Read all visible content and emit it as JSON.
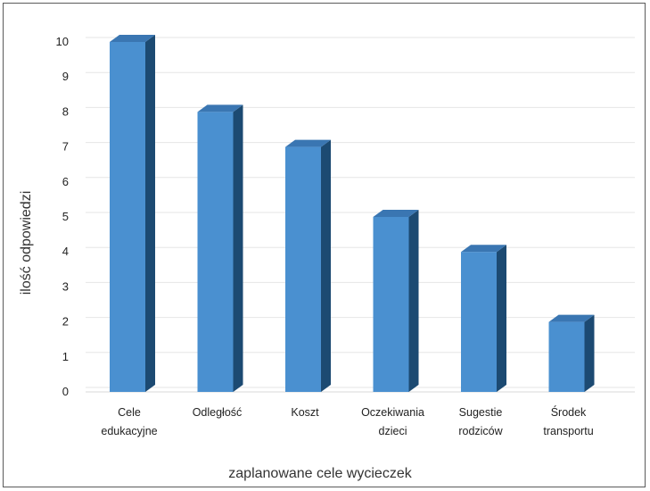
{
  "chart_data": {
    "type": "bar",
    "title": "",
    "categories": [
      [
        "Cele",
        "edukacyjne"
      ],
      [
        "Odległość"
      ],
      [
        "Koszt"
      ],
      [
        "Oczekiwania",
        "dzieci"
      ],
      [
        "Sugestie",
        "rodziców"
      ],
      [
        "Środek",
        "transportu"
      ]
    ],
    "values": [
      10,
      8,
      7,
      5,
      4,
      2
    ],
    "xlabel": "zaplanowane cele wycieczek",
    "ylabel": "ilość odpowiedzi",
    "ylim": [
      0,
      10
    ],
    "yticks": [
      "0",
      "1",
      "2",
      "3",
      "4",
      "5",
      "6",
      "7",
      "8",
      "9",
      "10"
    ],
    "grid": true,
    "legend": "none",
    "style": "3d-column",
    "colors": {
      "bar_front": "#4a90d0",
      "bar_top": "#3a76b2",
      "bar_side": "#1c4a72",
      "grid": "#e6e6e6",
      "frame": "#5a5a5a"
    }
  }
}
